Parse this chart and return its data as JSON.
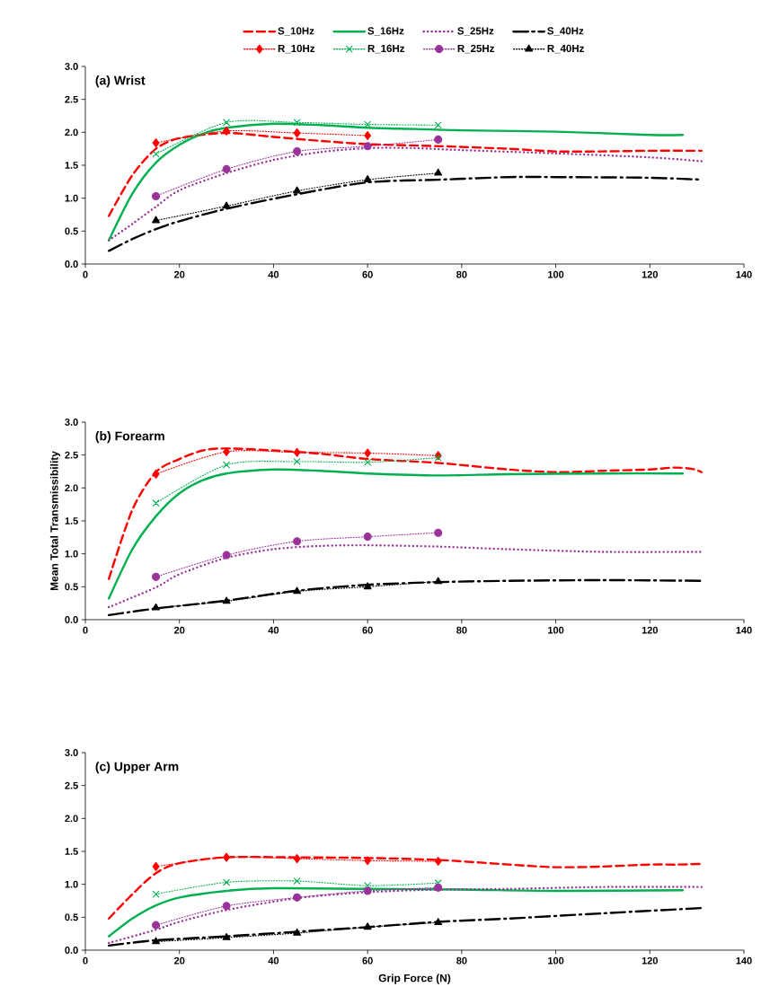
{
  "chart_data": [
    {
      "type": "line",
      "title": "(a) Wrist",
      "xlim": [
        0,
        140
      ],
      "ylim": [
        0,
        3
      ],
      "xticks": [
        0,
        20,
        40,
        60,
        80,
        100,
        120,
        140
      ],
      "yticks": [
        {
          "value": 0,
          "label": "0.0"
        },
        {
          "value": 0.5,
          "label": "0.5"
        },
        {
          "value": 1,
          "label": "1.0"
        },
        {
          "value": 1.5,
          "label": "1.5"
        },
        {
          "value": 2,
          "label": "2.0"
        },
        {
          "value": 2.5,
          "label": "2.5"
        },
        {
          "value": 3,
          "label": "3.0"
        }
      ],
      "legend": "top",
      "grid": false,
      "series": [
        {
          "name": "S_10Hz",
          "color": "#ff0000",
          "line_style": "dashed",
          "marker": "none",
          "x": [
            5,
            10,
            15,
            20,
            30,
            40,
            50,
            60,
            75,
            90,
            100,
            110,
            120,
            131
          ],
          "values": [
            0.73,
            1.35,
            1.75,
            1.91,
            1.99,
            1.93,
            1.87,
            1.82,
            1.79,
            1.75,
            1.71,
            1.71,
            1.72,
            1.72
          ]
        },
        {
          "name": "S_16Hz",
          "color": "#00b050",
          "line_style": "solid",
          "marker": "none",
          "x": [
            5,
            10,
            15,
            20,
            25,
            30,
            40,
            50,
            60,
            70,
            80,
            100,
            120,
            127
          ],
          "values": [
            0.36,
            1.07,
            1.54,
            1.81,
            1.98,
            2.07,
            2.13,
            2.11,
            2.07,
            2.05,
            2.03,
            2.01,
            1.96,
            1.96
          ]
        },
        {
          "name": "S_25Hz",
          "color": "#993399",
          "line_style": "dotted",
          "marker": "none",
          "x": [
            5,
            10,
            15,
            20,
            30,
            40,
            50,
            60,
            70,
            80,
            100,
            120,
            131
          ],
          "values": [
            0.36,
            0.61,
            0.87,
            1.12,
            1.38,
            1.58,
            1.7,
            1.76,
            1.76,
            1.73,
            1.68,
            1.62,
            1.56
          ]
        },
        {
          "name": "S_40Hz",
          "color": "#000000",
          "line_style": "dashdot",
          "marker": "none",
          "x": [
            5,
            10,
            15,
            20,
            30,
            45,
            60,
            75,
            90,
            100,
            120,
            131
          ],
          "values": [
            0.2,
            0.38,
            0.53,
            0.65,
            0.84,
            1.06,
            1.24,
            1.28,
            1.32,
            1.32,
            1.31,
            1.28
          ]
        },
        {
          "name": "R_10Hz",
          "color": "#ff0000",
          "line_style": "dotted",
          "marker": "diamond",
          "x": [
            15,
            30,
            45,
            60
          ],
          "values": [
            1.84,
            2.02,
            1.99,
            1.95
          ]
        },
        {
          "name": "R_16Hz",
          "color": "#00b050",
          "line_style": "dotted",
          "marker": "cross",
          "x": [
            15,
            30,
            45,
            60,
            75
          ],
          "values": [
            1.67,
            2.15,
            2.15,
            2.12,
            2.11
          ]
        },
        {
          "name": "R_25Hz",
          "color": "#993399",
          "line_style": "dotted",
          "marker": "circle",
          "x": [
            15,
            30,
            45,
            60,
            75
          ],
          "values": [
            1.03,
            1.44,
            1.71,
            1.79,
            1.89
          ]
        },
        {
          "name": "R_40Hz",
          "color": "#000000",
          "line_style": "dotted",
          "marker": "triangle",
          "x": [
            15,
            30,
            45,
            60,
            75
          ],
          "values": [
            0.66,
            0.88,
            1.11,
            1.28,
            1.38
          ]
        }
      ]
    },
    {
      "type": "line",
      "title": "(b) Forearm",
      "ylabel": "Mean Total Transmissibility",
      "xlim": [
        0,
        140
      ],
      "ylim": [
        0,
        3
      ],
      "xticks": [
        0,
        20,
        40,
        60,
        80,
        100,
        120,
        140
      ],
      "yticks": [
        {
          "value": 0,
          "label": "0.0"
        },
        {
          "value": 0.5,
          "label": "0.5"
        },
        {
          "value": 1,
          "label": "1.0"
        },
        {
          "value": 1.5,
          "label": "1.5"
        },
        {
          "value": 2,
          "label": "2.0"
        },
        {
          "value": 2.5,
          "label": "2.5"
        },
        {
          "value": 3,
          "label": "3.0"
        }
      ],
      "grid": false,
      "series": [
        {
          "color": "#ff0000",
          "line_style": "dashed",
          "marker": "none",
          "x": [
            5,
            10,
            15,
            20,
            25,
            30,
            40,
            50,
            60,
            75,
            90,
            100,
            110,
            120,
            125,
            129,
            131
          ],
          "values": [
            0.62,
            1.67,
            2.24,
            2.44,
            2.57,
            2.6,
            2.57,
            2.52,
            2.44,
            2.38,
            2.28,
            2.24,
            2.26,
            2.28,
            2.31,
            2.29,
            2.24
          ]
        },
        {
          "color": "#00b050",
          "line_style": "solid",
          "marker": "none",
          "x": [
            5,
            10,
            15,
            20,
            25,
            30,
            40,
            50,
            60,
            75,
            90,
            110,
            127
          ],
          "values": [
            0.32,
            1.07,
            1.57,
            1.92,
            2.12,
            2.22,
            2.28,
            2.26,
            2.22,
            2.19,
            2.21,
            2.22,
            2.22
          ]
        },
        {
          "color": "#993399",
          "line_style": "dotted",
          "marker": "none",
          "x": [
            5,
            15,
            20,
            30,
            40,
            50,
            60,
            75,
            90,
            110,
            131
          ],
          "values": [
            0.19,
            0.49,
            0.69,
            0.94,
            1.07,
            1.12,
            1.13,
            1.11,
            1.07,
            1.03,
            1.03
          ]
        },
        {
          "color": "#000000",
          "line_style": "dashdot",
          "marker": "none",
          "x": [
            5,
            15,
            30,
            45,
            60,
            75,
            90,
            110,
            131
          ],
          "values": [
            0.07,
            0.17,
            0.29,
            0.44,
            0.53,
            0.57,
            0.59,
            0.6,
            0.59
          ]
        },
        {
          "color": "#ff0000",
          "line_style": "dotted",
          "marker": "diamond",
          "x": [
            15,
            30,
            45,
            60,
            75
          ],
          "values": [
            2.21,
            2.55,
            2.54,
            2.53,
            2.49
          ]
        },
        {
          "color": "#00b050",
          "line_style": "dotted",
          "marker": "cross",
          "x": [
            15,
            30,
            45,
            60,
            75
          ],
          "values": [
            1.77,
            2.35,
            2.4,
            2.39,
            2.46
          ]
        },
        {
          "color": "#993399",
          "line_style": "dotted",
          "marker": "circle",
          "x": [
            15,
            30,
            45,
            60,
            75
          ],
          "values": [
            0.65,
            0.98,
            1.19,
            1.26,
            1.32
          ]
        },
        {
          "color": "#000000",
          "line_style": "dotted",
          "marker": "triangle",
          "x": [
            15,
            30,
            45,
            60,
            75
          ],
          "values": [
            0.18,
            0.28,
            0.43,
            0.5,
            0.58
          ]
        }
      ]
    },
    {
      "type": "line",
      "title": "(c) Upper Arm",
      "xlabel": "Grip Force (N)",
      "xlim": [
        0,
        140
      ],
      "ylim": [
        0,
        3
      ],
      "xticks": [
        0,
        20,
        40,
        60,
        80,
        100,
        120,
        140
      ],
      "yticks": [
        {
          "value": 0,
          "label": "0.0"
        },
        {
          "value": 0.5,
          "label": "0.5"
        },
        {
          "value": 1,
          "label": "1.0"
        },
        {
          "value": 1.5,
          "label": "1.5"
        },
        {
          "value": 2,
          "label": "2.0"
        },
        {
          "value": 2.5,
          "label": "2.5"
        },
        {
          "value": 3,
          "label": "3.0"
        }
      ],
      "grid": false,
      "series": [
        {
          "color": "#ff0000",
          "line_style": "dashed",
          "marker": "none",
          "x": [
            5,
            10,
            15,
            20,
            30,
            45,
            60,
            75,
            90,
            100,
            110,
            120,
            126,
            131
          ],
          "values": [
            0.48,
            0.85,
            1.17,
            1.32,
            1.41,
            1.41,
            1.4,
            1.37,
            1.3,
            1.26,
            1.27,
            1.3,
            1.3,
            1.31
          ]
        },
        {
          "color": "#00b050",
          "line_style": "solid",
          "marker": "none",
          "x": [
            5,
            10,
            15,
            20,
            30,
            40,
            60,
            80,
            100,
            127
          ],
          "values": [
            0.21,
            0.48,
            0.68,
            0.8,
            0.9,
            0.94,
            0.93,
            0.92,
            0.9,
            0.91
          ]
        },
        {
          "color": "#993399",
          "line_style": "dotted",
          "marker": "none",
          "x": [
            5,
            15,
            20,
            30,
            45,
            60,
            75,
            90,
            110,
            131
          ],
          "values": [
            0.11,
            0.31,
            0.43,
            0.61,
            0.79,
            0.88,
            0.92,
            0.93,
            0.96,
            0.96
          ]
        },
        {
          "color": "#000000",
          "line_style": "dashdot",
          "marker": "none",
          "x": [
            5,
            15,
            30,
            45,
            60,
            75,
            90,
            110,
            131
          ],
          "values": [
            0.07,
            0.15,
            0.21,
            0.28,
            0.35,
            0.43,
            0.48,
            0.56,
            0.64
          ]
        },
        {
          "color": "#ff0000",
          "line_style": "dotted",
          "marker": "diamond",
          "x": [
            15,
            30,
            45,
            60,
            75
          ],
          "values": [
            1.27,
            1.41,
            1.39,
            1.36,
            1.35
          ]
        },
        {
          "color": "#00b050",
          "line_style": "dotted",
          "marker": "cross",
          "x": [
            15,
            30,
            45,
            60,
            75
          ],
          "values": [
            0.85,
            1.03,
            1.05,
            0.98,
            1.02
          ]
        },
        {
          "color": "#993399",
          "line_style": "dotted",
          "marker": "circle",
          "x": [
            15,
            30,
            45,
            60,
            75
          ],
          "values": [
            0.38,
            0.67,
            0.8,
            0.9,
            0.95
          ]
        },
        {
          "color": "#000000",
          "line_style": "dotted",
          "marker": "triangle",
          "x": [
            15,
            30,
            45,
            60,
            75
          ],
          "values": [
            0.13,
            0.19,
            0.26,
            0.35,
            0.42
          ]
        }
      ]
    }
  ]
}
